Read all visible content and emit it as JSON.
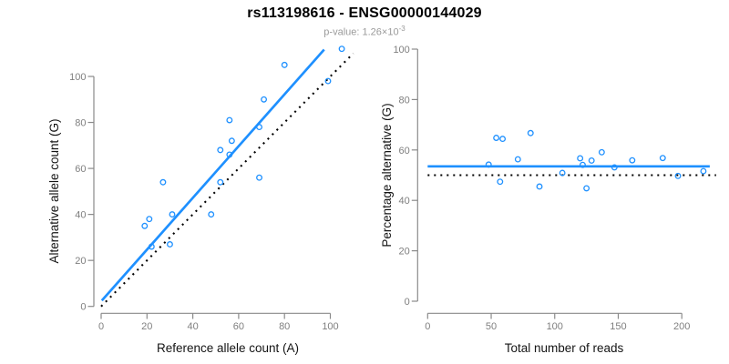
{
  "header": {
    "title": "rs113198616 - ENSG00000144029",
    "subtitle_prefix": "p-value: 1.26×10",
    "subtitle_exponent": "-3"
  },
  "colors": {
    "accent_blue": "#1E90FF",
    "axis_gray": "#8a8a8a",
    "tick_label_gray": "#7f7f7f",
    "axis_title_black": "#141414",
    "dotted_black": "#000000",
    "subtitle_gray": "#9a9a9a"
  },
  "chart_data": [
    {
      "type": "scatter",
      "panel": "allele-counts",
      "title": "",
      "xlabel": "Reference allele count (A)",
      "ylabel": "Alternative allele count (G)",
      "xticks": [
        0,
        20,
        40,
        60,
        80,
        100
      ],
      "yticks": [
        0,
        20,
        40,
        60,
        80,
        100
      ],
      "xlim": [
        0,
        110
      ],
      "ylim": [
        0,
        113
      ],
      "grid": false,
      "legend": null,
      "points": [
        [
          19,
          35
        ],
        [
          21,
          38
        ],
        [
          22,
          26
        ],
        [
          27,
          54
        ],
        [
          30,
          27
        ],
        [
          31,
          40
        ],
        [
          48,
          40
        ],
        [
          52,
          54
        ],
        [
          52,
          68
        ],
        [
          56,
          66
        ],
        [
          56,
          81
        ],
        [
          57,
          72
        ],
        [
          69,
          56
        ],
        [
          69,
          78
        ],
        [
          71,
          90
        ],
        [
          80,
          105
        ],
        [
          99,
          98
        ],
        [
          105,
          112
        ]
      ],
      "fit_line": {
        "slope": 1.125,
        "intercept": 2.2,
        "x_from": 0.3,
        "x_to": 97.3,
        "style": "solid"
      },
      "identity_line": {
        "slope": 1,
        "intercept": 0,
        "x_from": 0,
        "x_to": 110,
        "style": "dotted"
      }
    },
    {
      "type": "scatter",
      "panel": "percentage-vs-coverage",
      "title": "",
      "xlabel": "Total number of reads",
      "ylabel": "Percentage alternative (G)",
      "xticks": [
        0,
        50,
        100,
        150,
        200
      ],
      "yticks": [
        0,
        20,
        40,
        60,
        80,
        100
      ],
      "xlim": [
        0,
        227
      ],
      "ylim": [
        0,
        100
      ],
      "grid": false,
      "legend": null,
      "points": [
        [
          54,
          64.8
        ],
        [
          59,
          64.4
        ],
        [
          48,
          54.2
        ],
        [
          81,
          66.7
        ],
        [
          57,
          47.4
        ],
        [
          71,
          56.3
        ],
        [
          88,
          45.5
        ],
        [
          106,
          50.9
        ],
        [
          120,
          56.7
        ],
        [
          122,
          54.1
        ],
        [
          137,
          59.1
        ],
        [
          129,
          55.8
        ],
        [
          125,
          44.8
        ],
        [
          147,
          53.1
        ],
        [
          161,
          55.9
        ],
        [
          185,
          56.8
        ],
        [
          197,
          49.7
        ],
        [
          217,
          51.6
        ]
      ],
      "mean_line": {
        "y": 53.5,
        "x_from": 0,
        "x_to": 222,
        "style": "solid"
      },
      "expected_line": {
        "y": 50,
        "x_from": 0,
        "x_to": 227,
        "style": "dotted"
      }
    }
  ]
}
